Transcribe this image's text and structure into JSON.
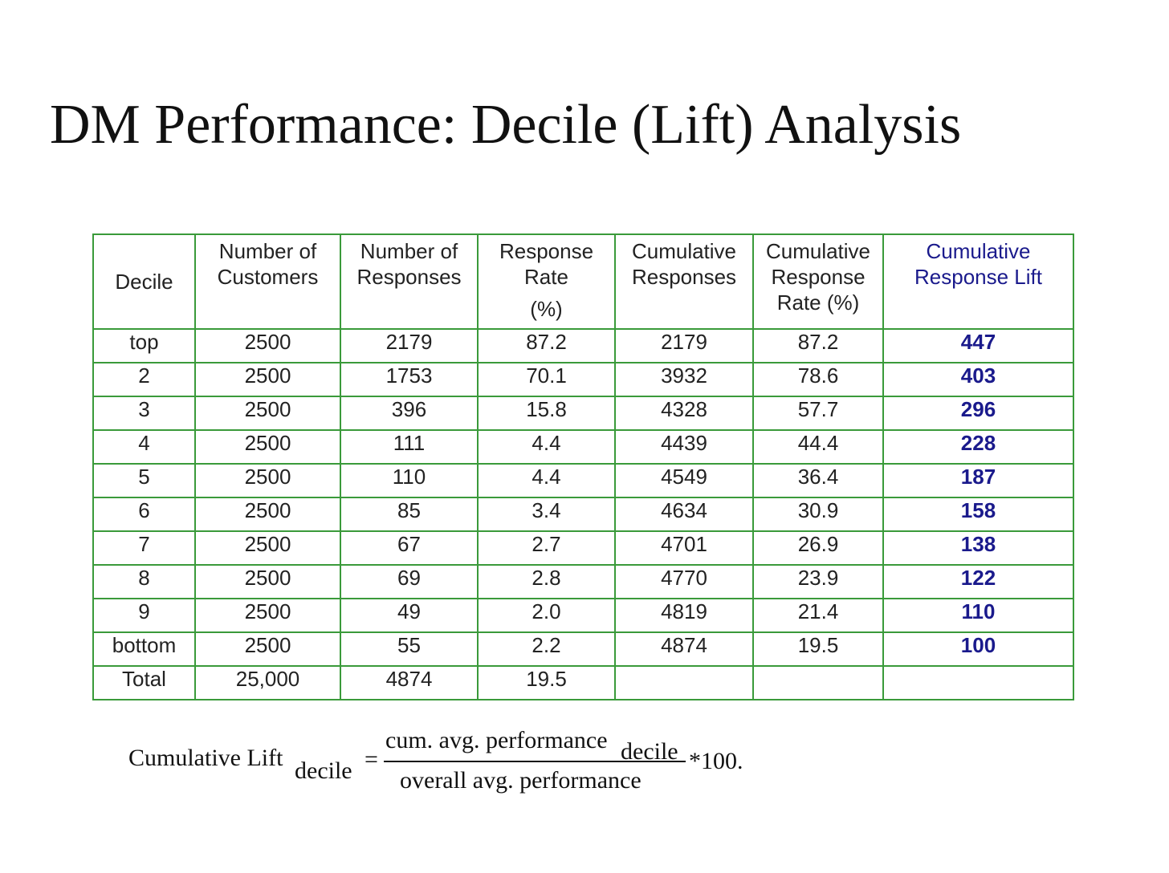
{
  "title": "DM Performance: Decile (Lift) Analysis",
  "table": {
    "headers": {
      "decile": [
        "Decile"
      ],
      "customers": [
        "Number of",
        "Customers"
      ],
      "responses": [
        "Number of",
        "Responses"
      ],
      "rate": [
        "Response",
        "Rate",
        "(%)"
      ],
      "cum_responses": [
        "Cumulative",
        "Responses"
      ],
      "cum_rate": [
        "Cumulative",
        "Response",
        "Rate (%)"
      ],
      "cum_lift": [
        "Cumulative",
        "Response Lift"
      ]
    },
    "rows": [
      [
        "top",
        "2500",
        "2179",
        "87.2",
        "2179",
        "87.2",
        "447"
      ],
      [
        "2",
        "2500",
        "1753",
        "70.1",
        "3932",
        "78.6",
        "403"
      ],
      [
        "3",
        "2500",
        "396",
        "15.8",
        "4328",
        "57.7",
        "296"
      ],
      [
        "4",
        "2500",
        "111",
        "4.4",
        "4439",
        "44.4",
        "228"
      ],
      [
        "5",
        "2500",
        "110",
        "4.4",
        "4549",
        "36.4",
        "187"
      ],
      [
        "6",
        "2500",
        "85",
        "3.4",
        "4634",
        "30.9",
        "158"
      ],
      [
        "7",
        "2500",
        "67",
        "2.7",
        "4701",
        "26.9",
        "138"
      ],
      [
        "8",
        "2500",
        "69",
        "2.8",
        "4770",
        "23.9",
        "122"
      ],
      [
        "9",
        "2500",
        "49",
        "2.0",
        "4819",
        "21.4",
        "110"
      ],
      [
        "bottom",
        "2500",
        "55",
        "2.2",
        "4874",
        "19.5",
        "100"
      ],
      [
        "Total",
        "25,000",
        "4874",
        "19.5",
        "",
        "",
        ""
      ]
    ]
  },
  "formula": {
    "lhs": "Cumulative Lift",
    "lhs_subscript": "decile",
    "equals": "=",
    "numerator": "cum. avg. performance",
    "numerator_subscript": "decile",
    "denominator": "overall avg. performance",
    "multiplier": "*100."
  },
  "colors": {
    "table_border": "#3a9a3a",
    "lift_text": "#1a1a8c"
  }
}
